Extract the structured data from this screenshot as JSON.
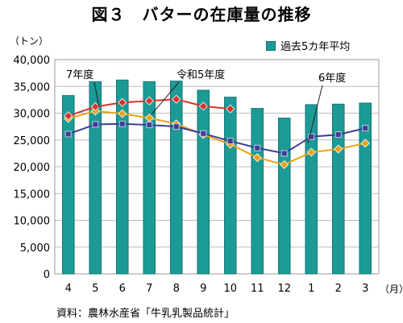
{
  "title": "図３　バターの在庫量の推移",
  "y_unit": "（トン）",
  "x_unit": "（月）",
  "source": "資料：農林水産省「牛乳乳製品統計」",
  "colors": {
    "bar": "#1c9a96",
    "bar_stroke": "#0f6f6c",
    "fy7": "#e8a21a",
    "fy6": "#3c3f94",
    "fy5": "#d8322c"
  },
  "chart_data": {
    "type": "bar",
    "categories": [
      "4",
      "5",
      "6",
      "7",
      "8",
      "9",
      "10",
      "11",
      "12",
      "1",
      "2",
      "3"
    ],
    "ylim": [
      0,
      40000
    ],
    "yticks": [
      "0",
      "5,000",
      "10,000",
      "15,000",
      "20,000",
      "25,000",
      "30,000",
      "35,000",
      "40,000"
    ],
    "grid": true,
    "legend_position": "top-right",
    "series": [
      {
        "name": "過去5カ年平均",
        "type": "bar",
        "values": [
          33300,
          35900,
          36200,
          35900,
          36000,
          34300,
          33000,
          30900,
          29100,
          31600,
          31700,
          31900
        ]
      },
      {
        "name": "7年度",
        "type": "line",
        "values": [
          29000,
          30400,
          29900,
          29100,
          28000,
          26000,
          24200,
          21700,
          20400,
          22700,
          23300,
          24400
        ]
      },
      {
        "name": "令和5年度",
        "type": "line",
        "values": [
          29500,
          31200,
          32000,
          32300,
          32600,
          31300,
          30800,
          null,
          null,
          null,
          null,
          null
        ]
      },
      {
        "name": "6年度",
        "type": "line",
        "values": [
          26100,
          27900,
          28000,
          27800,
          27500,
          26200,
          24800,
          23500,
          22500,
          25600,
          26000,
          27200
        ]
      }
    ],
    "annotations": [
      "7年度",
      "令和5年度",
      "6年度"
    ]
  }
}
